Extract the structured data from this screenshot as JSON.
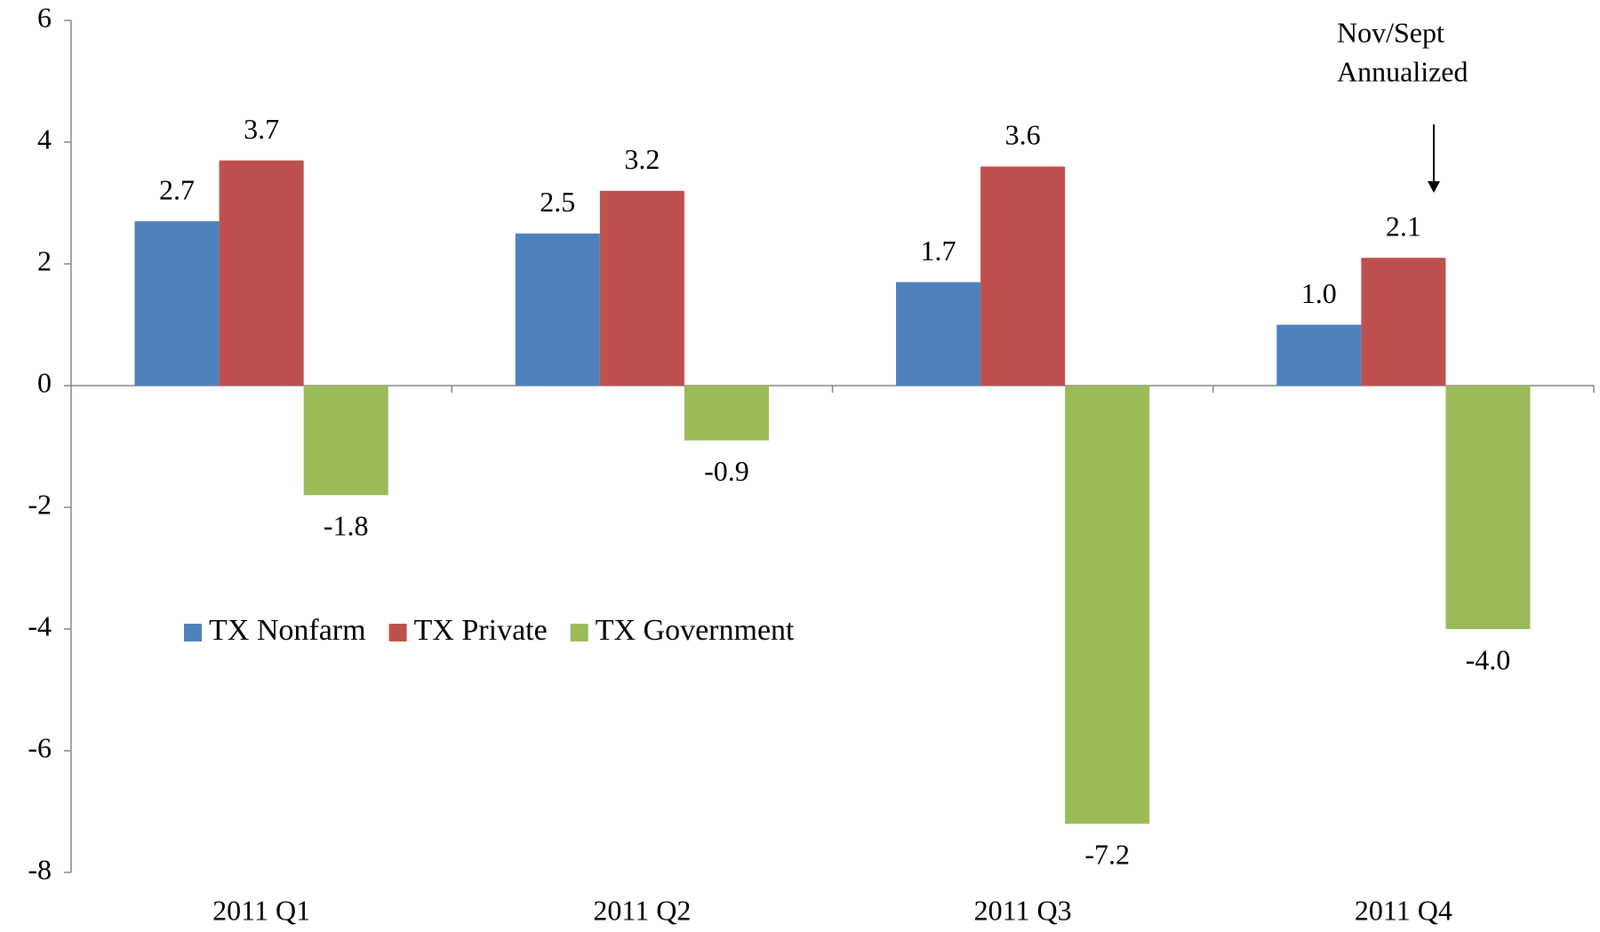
{
  "chart_data": {
    "type": "bar",
    "categories": [
      "2011 Q1",
      "2011 Q2",
      "2011 Q3",
      "2011 Q4"
    ],
    "series": [
      {
        "name": "TX Nonfarm",
        "color": "#4f81bd",
        "values": [
          2.7,
          2.5,
          1.7,
          1.0
        ],
        "value_labels": [
          "2.7",
          "2.5",
          "1.7",
          "1.0"
        ]
      },
      {
        "name": "TX Private",
        "color": "#c0504d",
        "values": [
          3.7,
          3.2,
          3.6,
          2.1
        ],
        "value_labels": [
          "3.7",
          "3.2",
          "3.6",
          "2.1"
        ]
      },
      {
        "name": "TX Government",
        "color": "#9bbb59",
        "values": [
          -1.8,
          -0.9,
          -7.2,
          -4.0
        ],
        "value_labels": [
          "-1.8",
          "-0.9",
          "-7.2",
          "-4.0"
        ]
      }
    ],
    "ylim": [
      -8,
      6
    ],
    "yticks": [
      -8,
      -6,
      -4,
      -2,
      0,
      2,
      4,
      6
    ],
    "grid": false,
    "annotation": [
      "Nov/Sept",
      "Annualized"
    ]
  }
}
